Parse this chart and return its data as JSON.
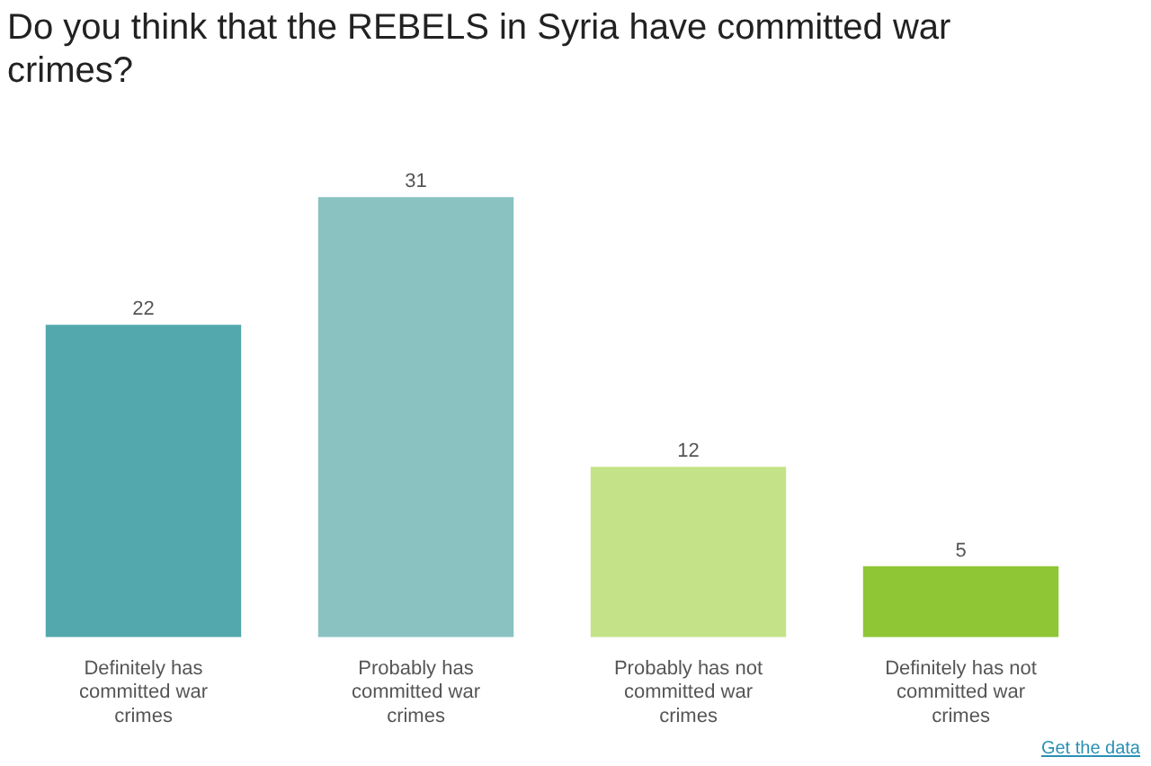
{
  "chart_data": {
    "type": "bar",
    "title": "Do you think that the REBELS in Syria have committed war crimes?",
    "categories": [
      "Definitely has committed war crimes",
      "Probably has committed war crimes",
      "Probably has not committed war crimes",
      "Definitely has not committed war crimes"
    ],
    "values": [
      22,
      31,
      12,
      5
    ],
    "colors": [
      "#52a8ad",
      "#8ac2c2",
      "#c4e389",
      "#8ec635"
    ],
    "tick_labels": "x",
    "data_labels": true,
    "legend": false,
    "annotations": [
      "Get the data"
    ]
  }
}
